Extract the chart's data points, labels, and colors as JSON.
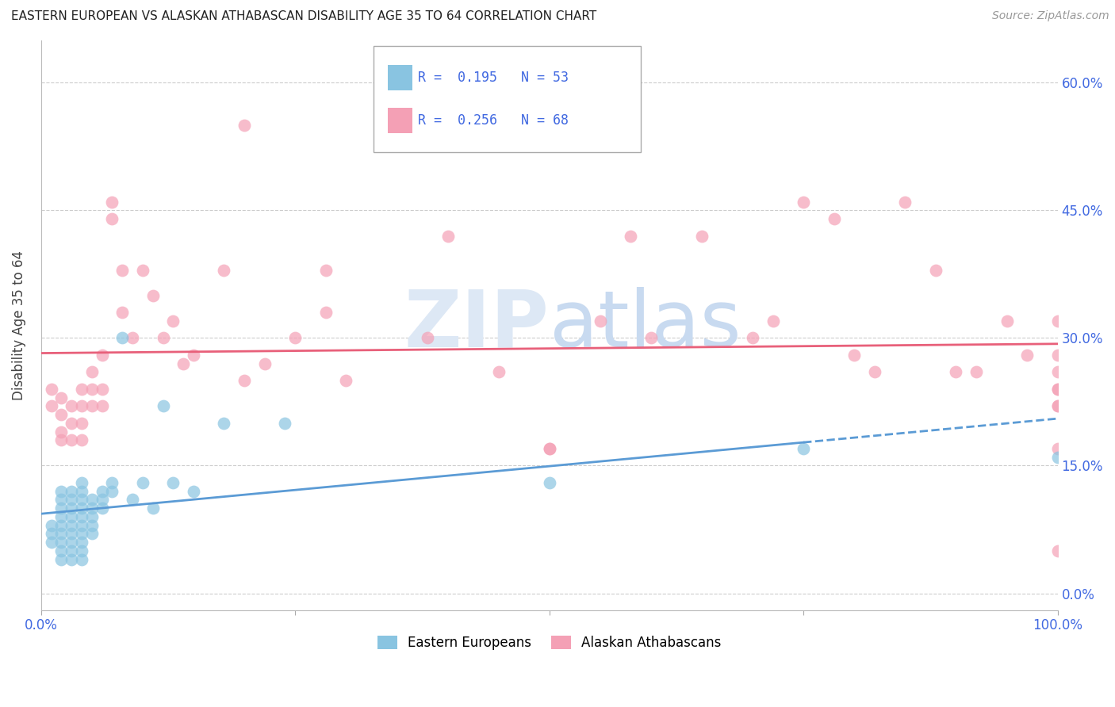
{
  "title": "EASTERN EUROPEAN VS ALASKAN ATHABASCAN DISABILITY AGE 35 TO 64 CORRELATION CHART",
  "source": "Source: ZipAtlas.com",
  "ylabel": "Disability Age 35 to 64",
  "watermark_line1": "ZIP",
  "watermark_line2": "atlas",
  "xlim": [
    0.0,
    1.0
  ],
  "ylim": [
    -0.02,
    0.65
  ],
  "yticks": [
    0.0,
    0.15,
    0.3,
    0.45,
    0.6
  ],
  "ytick_labels": [
    "0.0%",
    "15.0%",
    "30.0%",
    "45.0%",
    "60.0%"
  ],
  "xticks": [
    0.0,
    0.25,
    0.5,
    0.75,
    1.0
  ],
  "xtick_labels": [
    "0.0%",
    "",
    "",
    "",
    "100.0%"
  ],
  "ee_color": "#89c4e1",
  "aa_color": "#f4a0b5",
  "ee_line_color": "#5b9bd5",
  "aa_line_color": "#e8607a",
  "background_color": "#ffffff",
  "grid_color": "#cccccc",
  "title_color": "#222222",
  "axis_label_color": "#444444",
  "tick_color": "#4169e1",
  "watermark_color": "#dde8f5",
  "ee_scatter_x": [
    0.01,
    0.01,
    0.01,
    0.02,
    0.02,
    0.02,
    0.02,
    0.02,
    0.02,
    0.02,
    0.02,
    0.02,
    0.03,
    0.03,
    0.03,
    0.03,
    0.03,
    0.03,
    0.03,
    0.03,
    0.03,
    0.04,
    0.04,
    0.04,
    0.04,
    0.04,
    0.04,
    0.04,
    0.04,
    0.04,
    0.04,
    0.05,
    0.05,
    0.05,
    0.05,
    0.05,
    0.06,
    0.06,
    0.06,
    0.07,
    0.07,
    0.08,
    0.09,
    0.1,
    0.11,
    0.12,
    0.13,
    0.15,
    0.18,
    0.24,
    0.5,
    0.75,
    1.0
  ],
  "ee_scatter_y": [
    0.08,
    0.07,
    0.06,
    0.12,
    0.11,
    0.1,
    0.09,
    0.08,
    0.07,
    0.06,
    0.05,
    0.04,
    0.12,
    0.11,
    0.1,
    0.09,
    0.08,
    0.07,
    0.06,
    0.05,
    0.04,
    0.13,
    0.12,
    0.11,
    0.1,
    0.09,
    0.08,
    0.07,
    0.06,
    0.05,
    0.04,
    0.11,
    0.1,
    0.09,
    0.08,
    0.07,
    0.12,
    0.11,
    0.1,
    0.13,
    0.12,
    0.3,
    0.11,
    0.13,
    0.1,
    0.22,
    0.13,
    0.12,
    0.2,
    0.2,
    0.13,
    0.17,
    0.16
  ],
  "aa_scatter_x": [
    0.01,
    0.01,
    0.02,
    0.02,
    0.02,
    0.02,
    0.03,
    0.03,
    0.03,
    0.04,
    0.04,
    0.04,
    0.04,
    0.05,
    0.05,
    0.05,
    0.06,
    0.06,
    0.06,
    0.07,
    0.07,
    0.08,
    0.08,
    0.09,
    0.1,
    0.11,
    0.12,
    0.13,
    0.14,
    0.15,
    0.18,
    0.2,
    0.25,
    0.28,
    0.3,
    0.38,
    0.4,
    0.45,
    0.5,
    0.55,
    0.58,
    0.6,
    0.65,
    0.7,
    0.72,
    0.75,
    0.78,
    0.8,
    0.82,
    0.85,
    0.88,
    0.9,
    0.92,
    0.95,
    0.97,
    1.0,
    1.0,
    1.0,
    1.0,
    1.0,
    1.0,
    1.0,
    1.0,
    1.0,
    0.5,
    0.2,
    0.22,
    0.28
  ],
  "aa_scatter_y": [
    0.24,
    0.22,
    0.23,
    0.21,
    0.19,
    0.18,
    0.22,
    0.2,
    0.18,
    0.24,
    0.22,
    0.2,
    0.18,
    0.26,
    0.24,
    0.22,
    0.28,
    0.24,
    0.22,
    0.46,
    0.44,
    0.38,
    0.33,
    0.3,
    0.38,
    0.35,
    0.3,
    0.32,
    0.27,
    0.28,
    0.38,
    0.55,
    0.3,
    0.38,
    0.25,
    0.3,
    0.42,
    0.26,
    0.17,
    0.32,
    0.42,
    0.3,
    0.42,
    0.3,
    0.32,
    0.46,
    0.44,
    0.28,
    0.26,
    0.46,
    0.38,
    0.26,
    0.26,
    0.32,
    0.28,
    0.32,
    0.28,
    0.24,
    0.22,
    0.26,
    0.24,
    0.22,
    0.05,
    0.17,
    0.17,
    0.25,
    0.27,
    0.33
  ]
}
